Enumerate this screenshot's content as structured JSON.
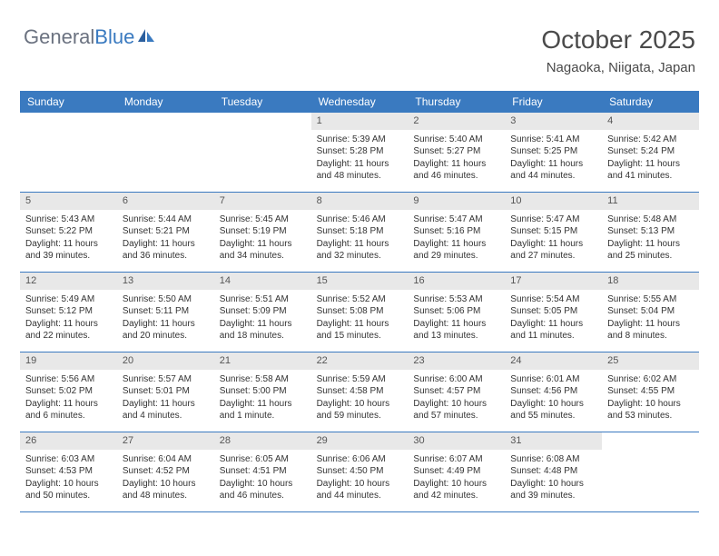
{
  "logo": {
    "text1": "General",
    "text2": "Blue"
  },
  "header": {
    "month": "October 2025",
    "location": "Nagaoka, Niigata, Japan"
  },
  "dayNames": [
    "Sunday",
    "Monday",
    "Tuesday",
    "Wednesday",
    "Thursday",
    "Friday",
    "Saturday"
  ],
  "colors": {
    "accent": "#3a7ac0",
    "dayNumBg": "#e8e8e8",
    "text": "#333333"
  },
  "weeks": [
    [
      null,
      null,
      null,
      {
        "n": "1",
        "sr": "Sunrise: 5:39 AM",
        "ss": "Sunset: 5:28 PM",
        "d1": "Daylight: 11 hours",
        "d2": "and 48 minutes."
      },
      {
        "n": "2",
        "sr": "Sunrise: 5:40 AM",
        "ss": "Sunset: 5:27 PM",
        "d1": "Daylight: 11 hours",
        "d2": "and 46 minutes."
      },
      {
        "n": "3",
        "sr": "Sunrise: 5:41 AM",
        "ss": "Sunset: 5:25 PM",
        "d1": "Daylight: 11 hours",
        "d2": "and 44 minutes."
      },
      {
        "n": "4",
        "sr": "Sunrise: 5:42 AM",
        "ss": "Sunset: 5:24 PM",
        "d1": "Daylight: 11 hours",
        "d2": "and 41 minutes."
      }
    ],
    [
      {
        "n": "5",
        "sr": "Sunrise: 5:43 AM",
        "ss": "Sunset: 5:22 PM",
        "d1": "Daylight: 11 hours",
        "d2": "and 39 minutes."
      },
      {
        "n": "6",
        "sr": "Sunrise: 5:44 AM",
        "ss": "Sunset: 5:21 PM",
        "d1": "Daylight: 11 hours",
        "d2": "and 36 minutes."
      },
      {
        "n": "7",
        "sr": "Sunrise: 5:45 AM",
        "ss": "Sunset: 5:19 PM",
        "d1": "Daylight: 11 hours",
        "d2": "and 34 minutes."
      },
      {
        "n": "8",
        "sr": "Sunrise: 5:46 AM",
        "ss": "Sunset: 5:18 PM",
        "d1": "Daylight: 11 hours",
        "d2": "and 32 minutes."
      },
      {
        "n": "9",
        "sr": "Sunrise: 5:47 AM",
        "ss": "Sunset: 5:16 PM",
        "d1": "Daylight: 11 hours",
        "d2": "and 29 minutes."
      },
      {
        "n": "10",
        "sr": "Sunrise: 5:47 AM",
        "ss": "Sunset: 5:15 PM",
        "d1": "Daylight: 11 hours",
        "d2": "and 27 minutes."
      },
      {
        "n": "11",
        "sr": "Sunrise: 5:48 AM",
        "ss": "Sunset: 5:13 PM",
        "d1": "Daylight: 11 hours",
        "d2": "and 25 minutes."
      }
    ],
    [
      {
        "n": "12",
        "sr": "Sunrise: 5:49 AM",
        "ss": "Sunset: 5:12 PM",
        "d1": "Daylight: 11 hours",
        "d2": "and 22 minutes."
      },
      {
        "n": "13",
        "sr": "Sunrise: 5:50 AM",
        "ss": "Sunset: 5:11 PM",
        "d1": "Daylight: 11 hours",
        "d2": "and 20 minutes."
      },
      {
        "n": "14",
        "sr": "Sunrise: 5:51 AM",
        "ss": "Sunset: 5:09 PM",
        "d1": "Daylight: 11 hours",
        "d2": "and 18 minutes."
      },
      {
        "n": "15",
        "sr": "Sunrise: 5:52 AM",
        "ss": "Sunset: 5:08 PM",
        "d1": "Daylight: 11 hours",
        "d2": "and 15 minutes."
      },
      {
        "n": "16",
        "sr": "Sunrise: 5:53 AM",
        "ss": "Sunset: 5:06 PM",
        "d1": "Daylight: 11 hours",
        "d2": "and 13 minutes."
      },
      {
        "n": "17",
        "sr": "Sunrise: 5:54 AM",
        "ss": "Sunset: 5:05 PM",
        "d1": "Daylight: 11 hours",
        "d2": "and 11 minutes."
      },
      {
        "n": "18",
        "sr": "Sunrise: 5:55 AM",
        "ss": "Sunset: 5:04 PM",
        "d1": "Daylight: 11 hours",
        "d2": "and 8 minutes."
      }
    ],
    [
      {
        "n": "19",
        "sr": "Sunrise: 5:56 AM",
        "ss": "Sunset: 5:02 PM",
        "d1": "Daylight: 11 hours",
        "d2": "and 6 minutes."
      },
      {
        "n": "20",
        "sr": "Sunrise: 5:57 AM",
        "ss": "Sunset: 5:01 PM",
        "d1": "Daylight: 11 hours",
        "d2": "and 4 minutes."
      },
      {
        "n": "21",
        "sr": "Sunrise: 5:58 AM",
        "ss": "Sunset: 5:00 PM",
        "d1": "Daylight: 11 hours",
        "d2": "and 1 minute."
      },
      {
        "n": "22",
        "sr": "Sunrise: 5:59 AM",
        "ss": "Sunset: 4:58 PM",
        "d1": "Daylight: 10 hours",
        "d2": "and 59 minutes."
      },
      {
        "n": "23",
        "sr": "Sunrise: 6:00 AM",
        "ss": "Sunset: 4:57 PM",
        "d1": "Daylight: 10 hours",
        "d2": "and 57 minutes."
      },
      {
        "n": "24",
        "sr": "Sunrise: 6:01 AM",
        "ss": "Sunset: 4:56 PM",
        "d1": "Daylight: 10 hours",
        "d2": "and 55 minutes."
      },
      {
        "n": "25",
        "sr": "Sunrise: 6:02 AM",
        "ss": "Sunset: 4:55 PM",
        "d1": "Daylight: 10 hours",
        "d2": "and 53 minutes."
      }
    ],
    [
      {
        "n": "26",
        "sr": "Sunrise: 6:03 AM",
        "ss": "Sunset: 4:53 PM",
        "d1": "Daylight: 10 hours",
        "d2": "and 50 minutes."
      },
      {
        "n": "27",
        "sr": "Sunrise: 6:04 AM",
        "ss": "Sunset: 4:52 PM",
        "d1": "Daylight: 10 hours",
        "d2": "and 48 minutes."
      },
      {
        "n": "28",
        "sr": "Sunrise: 6:05 AM",
        "ss": "Sunset: 4:51 PM",
        "d1": "Daylight: 10 hours",
        "d2": "and 46 minutes."
      },
      {
        "n": "29",
        "sr": "Sunrise: 6:06 AM",
        "ss": "Sunset: 4:50 PM",
        "d1": "Daylight: 10 hours",
        "d2": "and 44 minutes."
      },
      {
        "n": "30",
        "sr": "Sunrise: 6:07 AM",
        "ss": "Sunset: 4:49 PM",
        "d1": "Daylight: 10 hours",
        "d2": "and 42 minutes."
      },
      {
        "n": "31",
        "sr": "Sunrise: 6:08 AM",
        "ss": "Sunset: 4:48 PM",
        "d1": "Daylight: 10 hours",
        "d2": "and 39 minutes."
      },
      null
    ]
  ]
}
